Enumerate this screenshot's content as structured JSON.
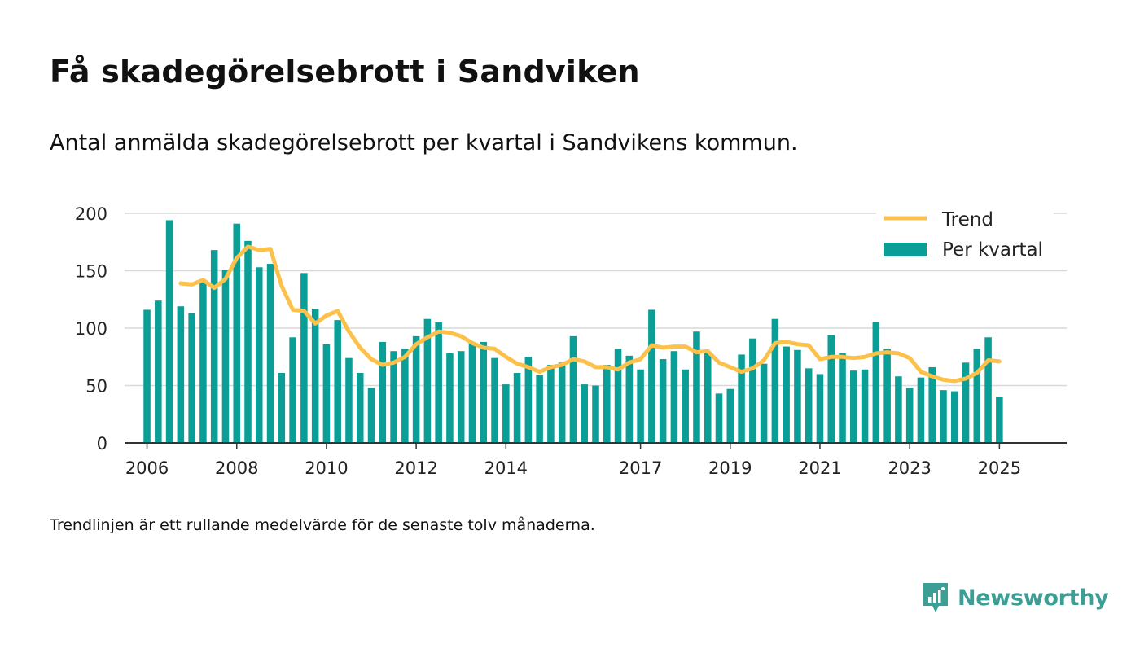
{
  "header": {
    "title": "Få skadegörelsebrott i Sandviken",
    "subtitle": "Antal anmälda skadegörelsebrott per kvartal i Sandvikens kommun."
  },
  "footer": {
    "note": "Trendlinjen är ett rullande medelvärde för de senaste tolv månaderna.",
    "brand": "Newsworthy"
  },
  "colors": {
    "bar": "#0a9e96",
    "trend": "#fcc14a",
    "grid": "#d9d9d9",
    "axis": "#333333",
    "brand": "#3d9e96"
  },
  "chart_data": {
    "type": "bar",
    "title": "Få skadegörelsebrott i Sandviken",
    "ylim": [
      0,
      200
    ],
    "yticks": [
      0,
      50,
      100,
      150,
      200
    ],
    "x_start": "2006-01",
    "xlim": [
      "2005-07",
      "2026-07"
    ],
    "xticks": [
      "2006",
      "2008",
      "2010",
      "2012",
      "2014",
      "2017",
      "2019",
      "2021",
      "2023",
      "2025"
    ],
    "grid": true,
    "legend_position": "top-right",
    "series": [
      {
        "name": "Per kvartal",
        "kind": "bar",
        "values": [
          116,
          124,
          194,
          119,
          113,
          140,
          168,
          151,
          191,
          176,
          153,
          156,
          61,
          92,
          148,
          117,
          86,
          107,
          74,
          61,
          48,
          88,
          80,
          82,
          93,
          108,
          105,
          78,
          80,
          87,
          88,
          74,
          51,
          61,
          75,
          59,
          68,
          70,
          93,
          51,
          50,
          68,
          82,
          76,
          64,
          116,
          73,
          80,
          64,
          97,
          79,
          43,
          47,
          77,
          91,
          69,
          108,
          84,
          81,
          65,
          60,
          94,
          78,
          63,
          64,
          105,
          82,
          58,
          48,
          57,
          66,
          46,
          45,
          70,
          82,
          92,
          40
        ]
      },
      {
        "name": "Trend",
        "kind": "line",
        "values": [
          null,
          null,
          null,
          139,
          138,
          142,
          135,
          143,
          161,
          171,
          168,
          169,
          137,
          116,
          115,
          104,
          111,
          115,
          97,
          83,
          73,
          68,
          70,
          75,
          86,
          92,
          97,
          96,
          93,
          87,
          83,
          82,
          75,
          69,
          66,
          62,
          66,
          68,
          73,
          71,
          66,
          66,
          64,
          70,
          73,
          85,
          83,
          84,
          84,
          79,
          80,
          70,
          66,
          62,
          65,
          72,
          87,
          88,
          86,
          85,
          73,
          75,
          75,
          74,
          75,
          78,
          79,
          78,
          74,
          62,
          58,
          55,
          54,
          56,
          61,
          72,
          71
        ]
      }
    ]
  }
}
